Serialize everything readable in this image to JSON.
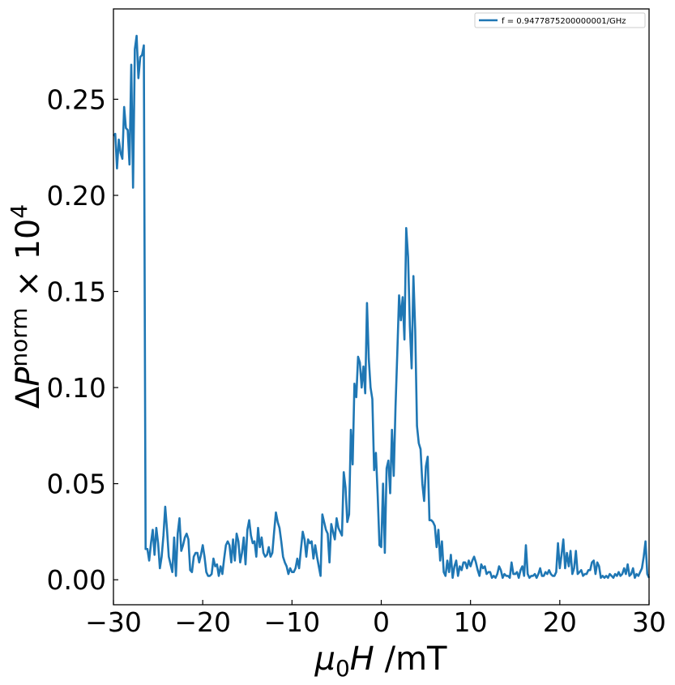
{
  "chart_data": {
    "type": "line",
    "xlabel": "μ0H /mT",
    "ylabel": "ΔP^norm × 10^4",
    "xlim": [
      -30,
      30
    ],
    "ylim": [
      -0.013,
      0.297
    ],
    "xticks": [
      -30,
      -20,
      -10,
      0,
      10,
      20,
      30
    ],
    "xtick_labels": [
      "−30",
      "−20",
      "−10",
      "0",
      "10",
      "20",
      "30"
    ],
    "yticks": [
      0.0,
      0.05,
      0.1,
      0.15,
      0.2,
      0.25
    ],
    "ytick_labels": [
      "0.00",
      "0.05",
      "0.10",
      "0.15",
      "0.20",
      "0.25"
    ],
    "grid": false,
    "legend_position": "top-right",
    "series": [
      {
        "name": "f = 0.9477875200000001/GHz",
        "color": "#1f77b4",
        "points": [
          [
            -30.0,
            0.231
          ],
          [
            -29.8,
            0.232
          ],
          [
            -29.6,
            0.214
          ],
          [
            -29.4,
            0.229
          ],
          [
            -29.2,
            0.222
          ],
          [
            -29.0,
            0.219
          ],
          [
            -28.8,
            0.246
          ],
          [
            -28.6,
            0.235
          ],
          [
            -28.4,
            0.234
          ],
          [
            -28.2,
            0.216
          ],
          [
            -28.0,
            0.268
          ],
          [
            -27.8,
            0.204
          ],
          [
            -27.6,
            0.276
          ],
          [
            -27.4,
            0.283
          ],
          [
            -27.2,
            0.261
          ],
          [
            -27.0,
            0.272
          ],
          [
            -26.8,
            0.273
          ],
          [
            -26.6,
            0.278
          ],
          [
            -26.4,
            0.016
          ],
          [
            -26.2,
            0.016
          ],
          [
            -26.0,
            0.01
          ],
          [
            -25.8,
            0.019
          ],
          [
            -25.6,
            0.026
          ],
          [
            -25.4,
            0.013
          ],
          [
            -25.2,
            0.027
          ],
          [
            -25.0,
            0.019
          ],
          [
            -24.8,
            0.006
          ],
          [
            -24.6,
            0.012
          ],
          [
            -24.4,
            0.023
          ],
          [
            -24.2,
            0.038
          ],
          [
            -24.0,
            0.026
          ],
          [
            -23.8,
            0.012
          ],
          [
            -23.6,
            0.008
          ],
          [
            -23.4,
            0.004
          ],
          [
            -23.2,
            0.022
          ],
          [
            -23.0,
            0.002
          ],
          [
            -22.8,
            0.024
          ],
          [
            -22.6,
            0.032
          ],
          [
            -22.4,
            0.015
          ],
          [
            -22.2,
            0.018
          ],
          [
            -22.0,
            0.022
          ],
          [
            -21.8,
            0.024
          ],
          [
            -21.6,
            0.021
          ],
          [
            -21.4,
            0.005
          ],
          [
            -21.2,
            0.004
          ],
          [
            -21.0,
            0.012
          ],
          [
            -20.8,
            0.014
          ],
          [
            -20.6,
            0.014
          ],
          [
            -20.4,
            0.009
          ],
          [
            -20.2,
            0.013
          ],
          [
            -20.0,
            0.018
          ],
          [
            -19.8,
            0.012
          ],
          [
            -19.6,
            0.004
          ],
          [
            -19.4,
            0.002
          ],
          [
            -19.2,
            0.002
          ],
          [
            -19.0,
            0.003
          ],
          [
            -18.8,
            0.011
          ],
          [
            -18.6,
            0.007
          ],
          [
            -18.4,
            0.008
          ],
          [
            -18.2,
            0.002
          ],
          [
            -18.0,
            0.007
          ],
          [
            -17.8,
            0.003
          ],
          [
            -17.6,
            0.011
          ],
          [
            -17.4,
            0.018
          ],
          [
            -17.2,
            0.02
          ],
          [
            -17.0,
            0.018
          ],
          [
            -16.8,
            0.009
          ],
          [
            -16.6,
            0.021
          ],
          [
            -16.4,
            0.01
          ],
          [
            -16.2,
            0.024
          ],
          [
            -16.0,
            0.02
          ],
          [
            -15.8,
            0.009
          ],
          [
            -15.6,
            0.014
          ],
          [
            -15.4,
            0.022
          ],
          [
            -15.2,
            0.008
          ],
          [
            -15.0,
            0.026
          ],
          [
            -14.8,
            0.031
          ],
          [
            -14.6,
            0.023
          ],
          [
            -14.4,
            0.019
          ],
          [
            -14.2,
            0.02
          ],
          [
            -14.0,
            0.012
          ],
          [
            -13.8,
            0.027
          ],
          [
            -13.6,
            0.017
          ],
          [
            -13.4,
            0.022
          ],
          [
            -13.2,
            0.014
          ],
          [
            -13.0,
            0.012
          ],
          [
            -12.8,
            0.013
          ],
          [
            -12.6,
            0.017
          ],
          [
            -12.4,
            0.012
          ],
          [
            -12.2,
            0.014
          ],
          [
            -12.0,
            0.025
          ],
          [
            -11.8,
            0.035
          ],
          [
            -11.6,
            0.03
          ],
          [
            -11.4,
            0.027
          ],
          [
            -11.2,
            0.02
          ],
          [
            -11.0,
            0.012
          ],
          [
            -10.8,
            0.009
          ],
          [
            -10.6,
            0.007
          ],
          [
            -10.4,
            0.003
          ],
          [
            -10.2,
            0.006
          ],
          [
            -10.0,
            0.004
          ],
          [
            -9.8,
            0.004
          ],
          [
            -9.6,
            0.006
          ],
          [
            -9.4,
            0.011
          ],
          [
            -9.2,
            0.006
          ],
          [
            -9.0,
            0.016
          ],
          [
            -8.8,
            0.025
          ],
          [
            -8.6,
            0.021
          ],
          [
            -8.4,
            0.012
          ],
          [
            -8.2,
            0.021
          ],
          [
            -8.0,
            0.019
          ],
          [
            -7.8,
            0.02
          ],
          [
            -7.6,
            0.011
          ],
          [
            -7.4,
            0.018
          ],
          [
            -7.2,
            0.012
          ],
          [
            -7.0,
            0.007
          ],
          [
            -6.8,
            0.002
          ],
          [
            -6.6,
            0.034
          ],
          [
            -6.4,
            0.03
          ],
          [
            -6.2,
            0.026
          ],
          [
            -6.0,
            0.024
          ],
          [
            -5.8,
            0.009
          ],
          [
            -5.6,
            0.029
          ],
          [
            -5.4,
            0.025
          ],
          [
            -5.2,
            0.021
          ],
          [
            -5.0,
            0.032
          ],
          [
            -4.8,
            0.027
          ],
          [
            -4.6,
            0.025
          ],
          [
            -4.4,
            0.023
          ],
          [
            -4.2,
            0.056
          ],
          [
            -4.0,
            0.048
          ],
          [
            -3.8,
            0.03
          ],
          [
            -3.6,
            0.034
          ],
          [
            -3.4,
            0.078
          ],
          [
            -3.2,
            0.06
          ],
          [
            -3.0,
            0.102
          ],
          [
            -2.8,
            0.095
          ],
          [
            -2.6,
            0.116
          ],
          [
            -2.4,
            0.113
          ],
          [
            -2.2,
            0.1
          ],
          [
            -2.0,
            0.111
          ],
          [
            -1.8,
            0.097
          ],
          [
            -1.6,
            0.144
          ],
          [
            -1.4,
            0.115
          ],
          [
            -1.2,
            0.1
          ],
          [
            -1.0,
            0.094
          ],
          [
            -0.8,
            0.057
          ],
          [
            -0.6,
            0.066
          ],
          [
            -0.4,
            0.044
          ],
          [
            -0.2,
            0.018
          ],
          [
            0.0,
            0.017
          ],
          [
            0.2,
            0.05
          ],
          [
            0.4,
            0.014
          ],
          [
            0.6,
            0.058
          ],
          [
            0.8,
            0.062
          ],
          [
            1.0,
            0.045
          ],
          [
            1.2,
            0.078
          ],
          [
            1.4,
            0.054
          ],
          [
            1.6,
            0.09
          ],
          [
            1.8,
            0.118
          ],
          [
            2.0,
            0.148
          ],
          [
            2.2,
            0.135
          ],
          [
            2.4,
            0.147
          ],
          [
            2.6,
            0.125
          ],
          [
            2.8,
            0.183
          ],
          [
            3.0,
            0.168
          ],
          [
            3.2,
            0.132
          ],
          [
            3.4,
            0.11
          ],
          [
            3.6,
            0.158
          ],
          [
            3.8,
            0.13
          ],
          [
            4.0,
            0.08
          ],
          [
            4.2,
            0.071
          ],
          [
            4.4,
            0.068
          ],
          [
            4.6,
            0.05
          ],
          [
            4.8,
            0.041
          ],
          [
            5.0,
            0.059
          ],
          [
            5.2,
            0.064
          ],
          [
            5.4,
            0.031
          ],
          [
            5.6,
            0.031
          ],
          [
            5.8,
            0.03
          ],
          [
            6.0,
            0.028
          ],
          [
            6.2,
            0.017
          ],
          [
            6.4,
            0.026
          ],
          [
            6.6,
            0.01
          ],
          [
            6.8,
            0.02
          ],
          [
            7.0,
            0.004
          ],
          [
            7.2,
            0.002
          ],
          [
            7.4,
            0.01
          ],
          [
            7.6,
            0.004
          ],
          [
            7.8,
            0.013
          ],
          [
            8.0,
            0.001
          ],
          [
            8.2,
            0.007
          ],
          [
            8.4,
            0.01
          ],
          [
            8.6,
            0.002
          ],
          [
            8.8,
            0.007
          ],
          [
            9.0,
            0.005
          ],
          [
            9.2,
            0.009
          ],
          [
            9.4,
            0.009
          ],
          [
            9.6,
            0.006
          ],
          [
            9.8,
            0.01
          ],
          [
            10.0,
            0.007
          ],
          [
            10.2,
            0.01
          ],
          [
            10.4,
            0.012
          ],
          [
            10.6,
            0.009
          ],
          [
            10.8,
            0.005
          ],
          [
            11.0,
            0.002
          ],
          [
            11.2,
            0.008
          ],
          [
            11.4,
            0.006
          ],
          [
            11.6,
            0.007
          ],
          [
            11.8,
            0.003
          ],
          [
            12.0,
            0.004
          ],
          [
            12.2,
            0.004
          ],
          [
            12.4,
            0.001
          ],
          [
            12.6,
            0.002
          ],
          [
            12.8,
            0.001
          ],
          [
            13.0,
            0.003
          ],
          [
            13.2,
            0.007
          ],
          [
            13.4,
            0.005
          ],
          [
            13.6,
            0.001
          ],
          [
            13.8,
            0.003
          ],
          [
            14.0,
            0.002
          ],
          [
            14.2,
            0.002
          ],
          [
            14.4,
            0.001
          ],
          [
            14.6,
            0.009
          ],
          [
            14.8,
            0.003
          ],
          [
            15.0,
            0.003
          ],
          [
            15.2,
            0.004
          ],
          [
            15.4,
            0.001
          ],
          [
            15.6,
            0.005
          ],
          [
            15.8,
            0.007
          ],
          [
            16.0,
            0.002
          ],
          [
            16.2,
            0.018
          ],
          [
            16.4,
            0.003
          ],
          [
            16.6,
            0.001
          ],
          [
            16.8,
            0.002
          ],
          [
            17.0,
            0.002
          ],
          [
            17.2,
            0.003
          ],
          [
            17.4,
            0.001
          ],
          [
            17.6,
            0.003
          ],
          [
            17.8,
            0.006
          ],
          [
            18.0,
            0.002
          ],
          [
            18.2,
            0.002
          ],
          [
            18.4,
            0.004
          ],
          [
            18.6,
            0.003
          ],
          [
            18.8,
            0.005
          ],
          [
            19.0,
            0.003
          ],
          [
            19.2,
            0.002
          ],
          [
            19.4,
            0.002
          ],
          [
            19.6,
            0.004
          ],
          [
            19.8,
            0.019
          ],
          [
            20.0,
            0.006
          ],
          [
            20.2,
            0.013
          ],
          [
            20.4,
            0.021
          ],
          [
            20.6,
            0.006
          ],
          [
            20.8,
            0.014
          ],
          [
            21.0,
            0.007
          ],
          [
            21.2,
            0.015
          ],
          [
            21.4,
            0.003
          ],
          [
            21.6,
            0.006
          ],
          [
            21.8,
            0.015
          ],
          [
            22.0,
            0.003
          ],
          [
            22.2,
            0.004
          ],
          [
            22.4,
            0.005
          ],
          [
            22.6,
            0.002
          ],
          [
            22.8,
            0.003
          ],
          [
            23.0,
            0.003
          ],
          [
            23.2,
            0.005
          ],
          [
            23.4,
            0.005
          ],
          [
            23.6,
            0.009
          ],
          [
            23.8,
            0.01
          ],
          [
            24.0,
            0.003
          ],
          [
            24.2,
            0.009
          ],
          [
            24.4,
            0.007
          ],
          [
            24.6,
            0.001
          ],
          [
            24.8,
            0.002
          ],
          [
            25.0,
            0.001
          ],
          [
            25.2,
            0.002
          ],
          [
            25.4,
            0.001
          ],
          [
            25.6,
            0.003
          ],
          [
            25.8,
            0.002
          ],
          [
            26.0,
            0.001
          ],
          [
            26.2,
            0.003
          ],
          [
            26.4,
            0.002
          ],
          [
            26.6,
            0.004
          ],
          [
            26.8,
            0.002
          ],
          [
            27.0,
            0.003
          ],
          [
            27.2,
            0.006
          ],
          [
            27.4,
            0.003
          ],
          [
            27.6,
            0.008
          ],
          [
            27.8,
            0.002
          ],
          [
            28.0,
            0.003
          ],
          [
            28.2,
            0.006
          ],
          [
            28.4,
            0.001
          ],
          [
            28.6,
            0.003
          ],
          [
            28.8,
            0.002
          ],
          [
            29.0,
            0.004
          ],
          [
            29.2,
            0.006
          ],
          [
            29.4,
            0.012
          ],
          [
            29.6,
            0.02
          ],
          [
            29.8,
            0.003
          ],
          [
            30.0,
            0.001
          ]
        ]
      }
    ]
  }
}
